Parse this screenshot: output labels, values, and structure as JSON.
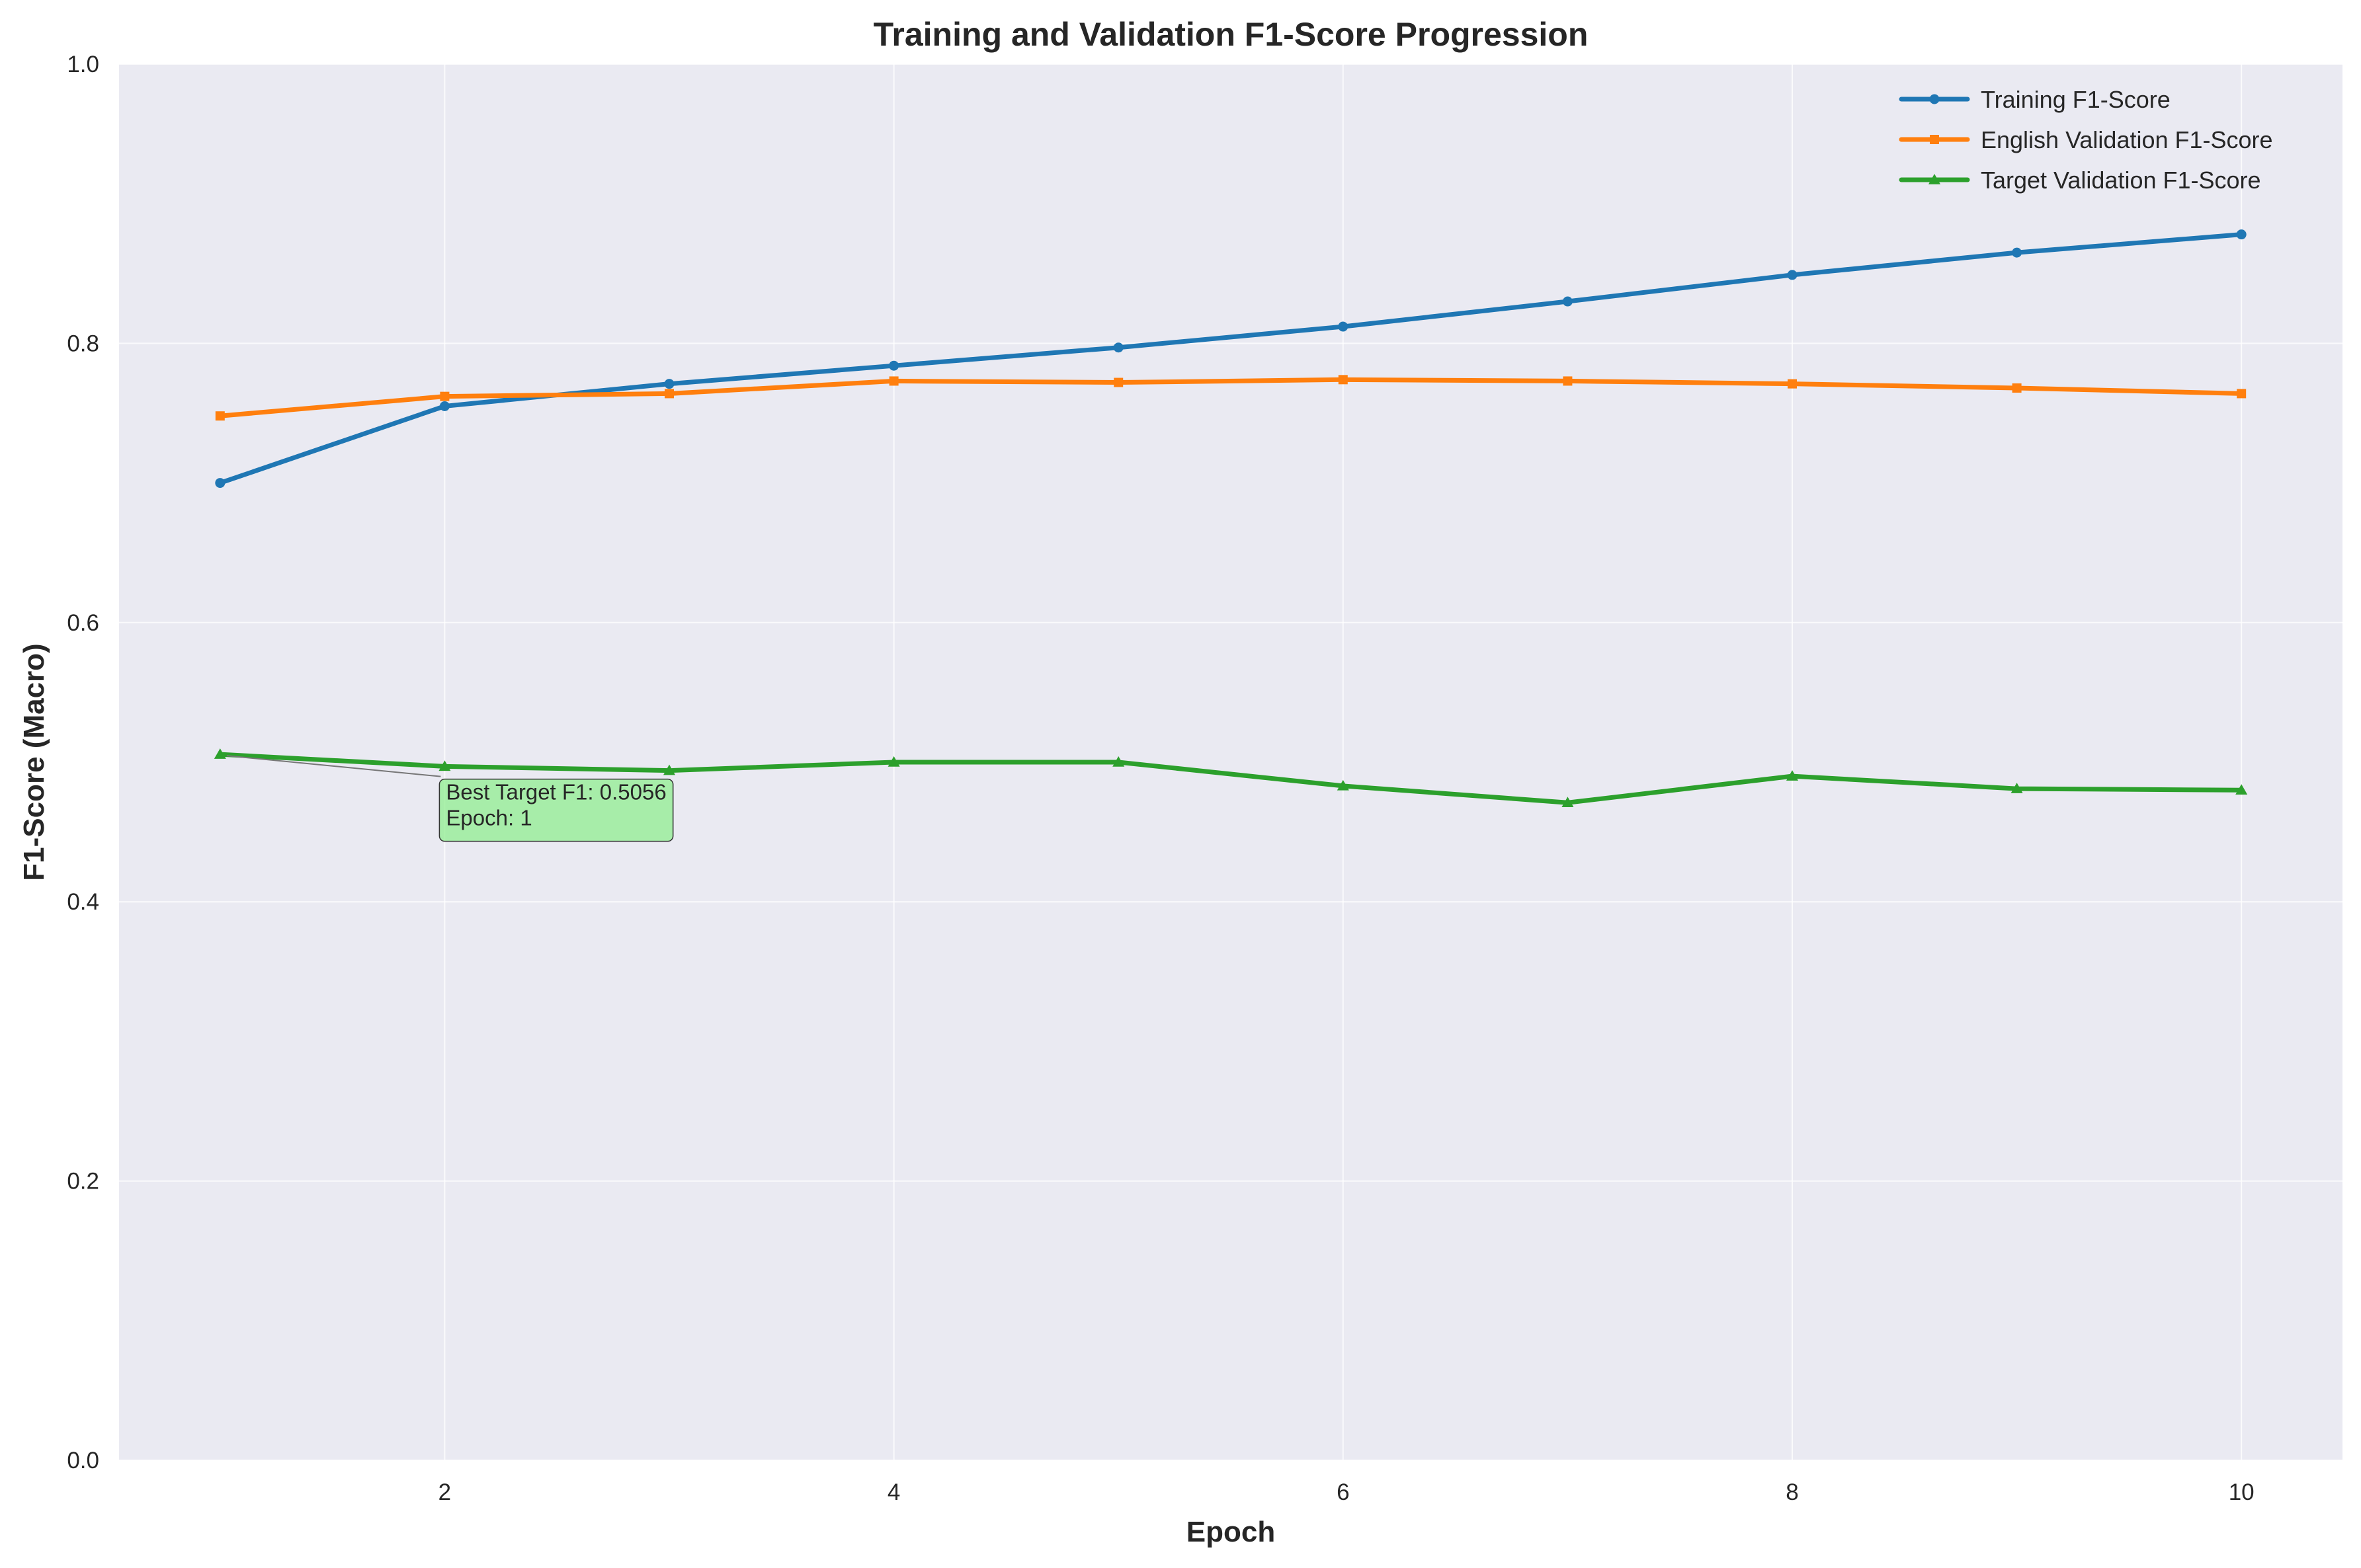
{
  "chart_data": {
    "type": "line",
    "title": "Training and Validation F1-Score Progression",
    "xlabel": "Epoch",
    "ylabel": "F1-Score (Macro)",
    "xlim": [
      0.55,
      10.45
    ],
    "ylim": [
      0.0,
      1.0
    ],
    "x": [
      1,
      2,
      3,
      4,
      5,
      6,
      7,
      8,
      9,
      10
    ],
    "x_ticks": [
      2,
      4,
      6,
      8,
      10
    ],
    "x_tick_labels": [
      "2",
      "4",
      "6",
      "8",
      "10"
    ],
    "y_ticks": [
      0.0,
      0.2,
      0.4,
      0.6,
      0.8,
      1.0
    ],
    "y_tick_labels": [
      "0.0",
      "0.2",
      "0.4",
      "0.6",
      "0.8",
      "1.0"
    ],
    "grid": true,
    "legend_position": "top-right",
    "series": [
      {
        "name": "Training F1-Score",
        "color": "#1f77b4",
        "marker": "circle",
        "values": [
          0.7,
          0.755,
          0.771,
          0.784,
          0.797,
          0.812,
          0.83,
          0.849,
          0.865,
          0.878
        ]
      },
      {
        "name": "English Validation F1-Score",
        "color": "#ff7f0e",
        "marker": "square",
        "values": [
          0.748,
          0.762,
          0.764,
          0.773,
          0.772,
          0.774,
          0.773,
          0.771,
          0.768,
          0.764
        ]
      },
      {
        "name": "Target Validation F1-Score",
        "color": "#2ca02c",
        "marker": "triangle",
        "values": [
          0.5056,
          0.497,
          0.494,
          0.5,
          0.5,
          0.483,
          0.471,
          0.49,
          0.481,
          0.48
        ]
      }
    ],
    "annotation": {
      "lines": [
        "Best Target F1: 0.5056",
        "Epoch: 1"
      ],
      "point_x": 1,
      "point_y": 0.5056,
      "text_x": 2,
      "text_y": 0.485,
      "box_color": "#90ee90"
    }
  },
  "colors": {
    "plot_background": "#eaeaf2",
    "grid": "#ffffff",
    "text": "#262626"
  }
}
